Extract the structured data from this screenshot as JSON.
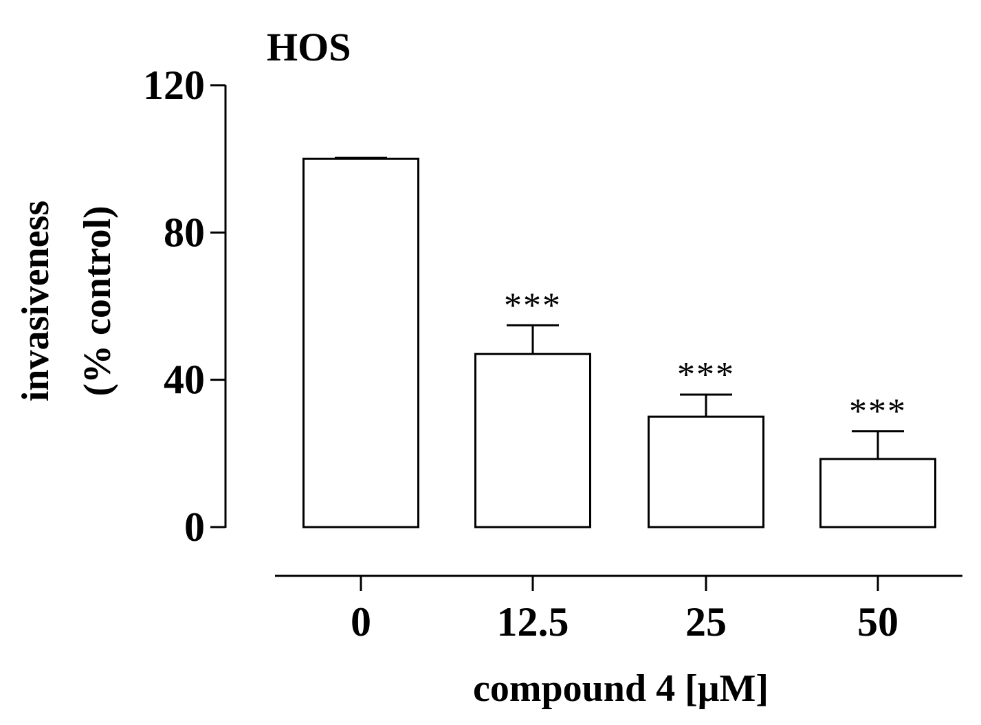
{
  "chart_data": {
    "type": "bar",
    "title": "HOS",
    "categories": [
      "0",
      "12.5",
      "25",
      "50"
    ],
    "series": [
      {
        "values": [
          100,
          47,
          30,
          18.5
        ],
        "errors": [
          0.3,
          7.8,
          6,
          7.5
        ]
      }
    ],
    "significance": [
      "",
      "***",
      "***",
      "***"
    ],
    "ylabel_lines": [
      "invasiveness",
      "(% control)"
    ],
    "xlabel": "compound 4 [μM]",
    "ylim": [
      0,
      120
    ],
    "yticks": [
      0,
      40,
      80,
      120
    ],
    "yticks_labels": [
      "0",
      "40",
      "80",
      "120"
    ],
    "grid": false,
    "bar_fill": "#ffffff",
    "bar_stroke": "#000000"
  }
}
